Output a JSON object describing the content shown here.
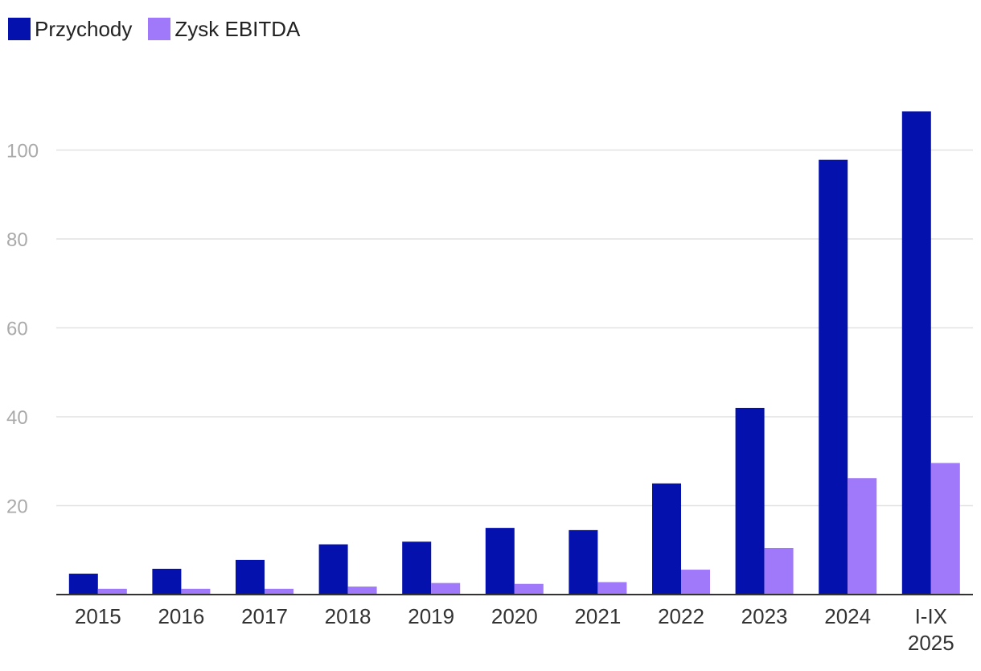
{
  "colors": {
    "revenue": "#0411AC",
    "ebitda": "#A078FA",
    "grid": "#e2e2e2",
    "axis": "#333333"
  },
  "chart_data": {
    "type": "bar",
    "categories": [
      "2015",
      "2016",
      "2017",
      "2018",
      "2019",
      "2020",
      "2021",
      "2022",
      "2023",
      "2024",
      "I-IX\n2025"
    ],
    "series": [
      {
        "name": "Przychody",
        "color": "#0411AC",
        "values": [
          4.7,
          5.8,
          7.8,
          11.3,
          11.9,
          15.0,
          14.5,
          25.0,
          42.0,
          97.8,
          108.7
        ]
      },
      {
        "name": "Zysk EBITDA",
        "color": "#A078FA",
        "values": [
          1.3,
          1.3,
          1.3,
          1.8,
          2.6,
          2.4,
          2.8,
          5.6,
          10.5,
          26.2,
          29.6
        ]
      }
    ],
    "yticks": [
      20,
      40,
      60,
      80,
      100
    ],
    "ylim": [
      0,
      110
    ],
    "grid": true,
    "legend": "top-left",
    "title": "",
    "xlabel": "",
    "ylabel": ""
  }
}
